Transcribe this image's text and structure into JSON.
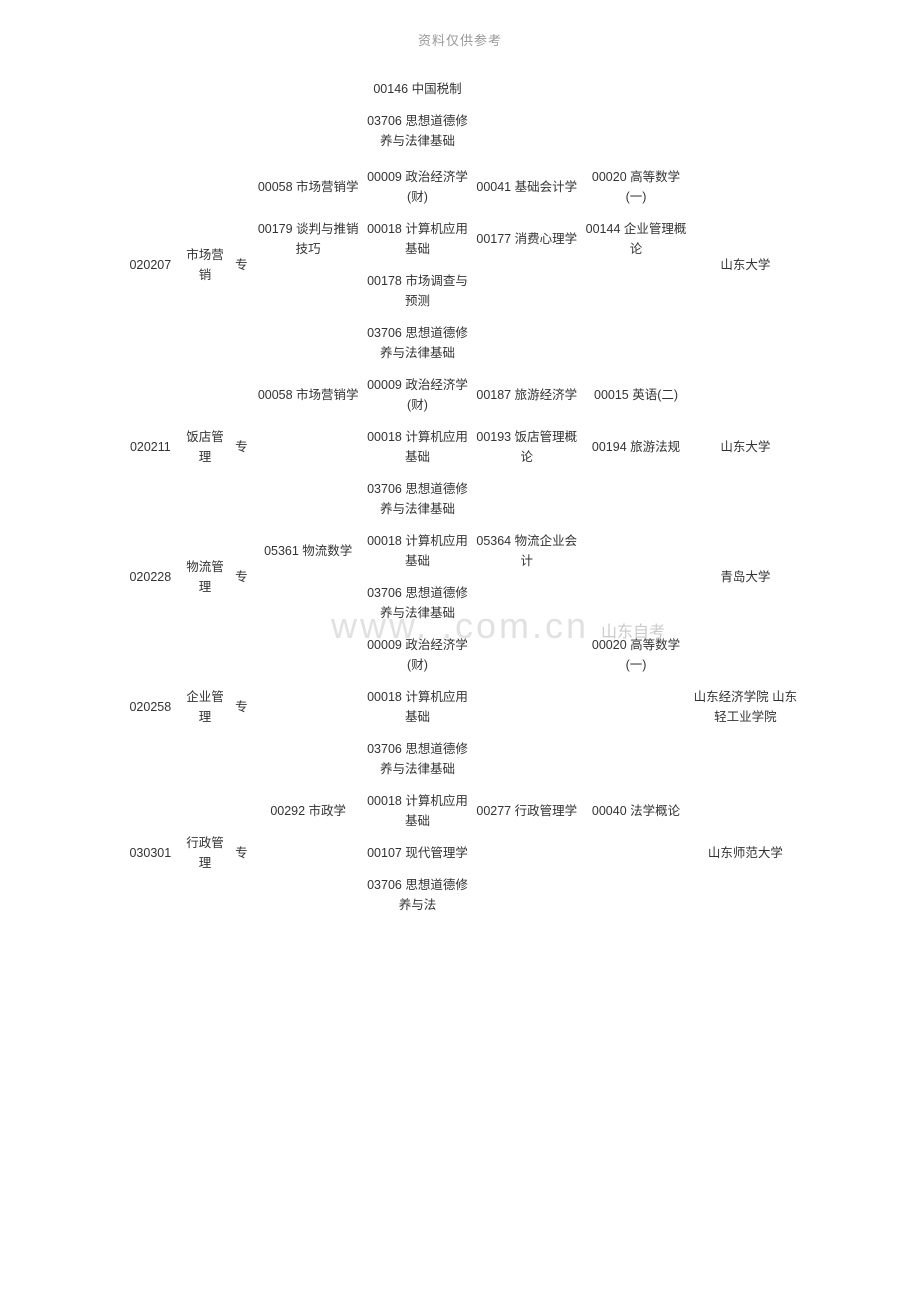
{
  "header": "资料仅供参考",
  "watermark": "www. .com.cn",
  "watermark_cn": "山东自考",
  "colors": {
    "background": "#ffffff",
    "text": "#333333",
    "header_text": "#999999",
    "watermark": "rgba(180, 180, 180, 0.4)"
  },
  "orphan_cells": {
    "cell1": "00146 中国税制",
    "cell2": "03706 思想道德修养与法律基础"
  },
  "rows": [
    {
      "code": "020207",
      "name": "市场营销",
      "level": "专",
      "col1": [
        "00058 市场营销学",
        "00179 谈判与推销技巧"
      ],
      "col2": [
        "00009 政治经济学(财)",
        "00018 计算机应用基础",
        "00178 市场调查与预测",
        "03706 思想道德修养与法律基础"
      ],
      "col3": [
        "00041 基础会计学",
        "00177 消费心理学"
      ],
      "col4": [
        "00020 高等数学(一)",
        "00144 企业管理概论"
      ],
      "school": "山东大学"
    },
    {
      "code": "020211",
      "name": "饭店管理",
      "level": "专",
      "col1": [
        "00058 市场营销学"
      ],
      "col2": [
        "00009 政治经济学(财)",
        "00018 计算机应用基础",
        "03706 思想道德修养与法律基础"
      ],
      "col3": [
        "00187 旅游经济学",
        "00193 饭店管理概论"
      ],
      "col4": [
        "00015 英语(二)",
        "00194 旅游法规"
      ],
      "school": "山东大学"
    },
    {
      "code": "020228",
      "name": "物流管理",
      "level": "专",
      "col1": [
        "05361 物流数学"
      ],
      "col2": [
        "00018 计算机应用基础",
        "03706 思想道德修养与法律基础"
      ],
      "col3": [
        "05364 物流企业会计"
      ],
      "col4": [],
      "school": "青岛大学"
    },
    {
      "code": "020258",
      "name": "企业管理",
      "level": "专",
      "col1": [],
      "col2": [
        "00009 政治经济学(财)",
        "00018 计算机应用基础",
        "03706 思想道德修养与法律基础"
      ],
      "col3": [],
      "col4": [
        "00020 高等数学(一)"
      ],
      "school": "山东经济学院 山东轻工业学院"
    },
    {
      "code": "030301",
      "name": "行政管理",
      "level": "专",
      "col1": [
        "00292 市政学"
      ],
      "col2": [
        "00018 计算机应用基础",
        "00107 现代管理学",
        "03706 思想道德修养与法"
      ],
      "col3": [
        "00277 行政管理学"
      ],
      "col4": [
        "00040 法学概论"
      ],
      "school": "山东师范大学"
    }
  ]
}
